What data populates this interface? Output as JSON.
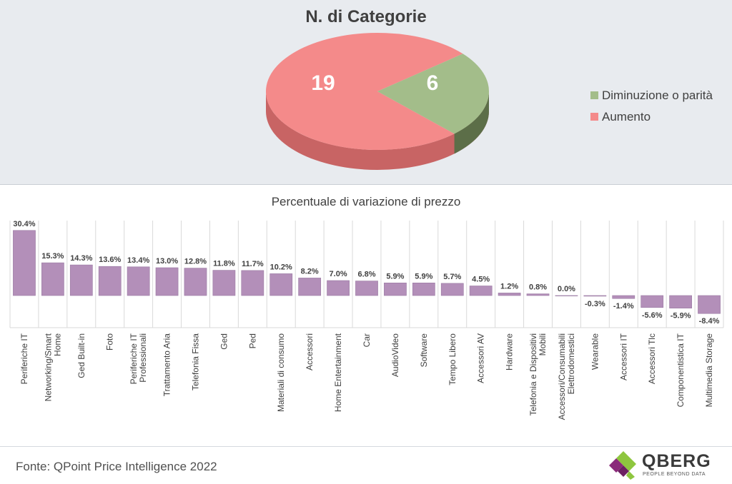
{
  "colors": {
    "increase": "#f48a8a",
    "increase_dark": "#c86464",
    "decrease": "#a3bd8a",
    "decrease_dark": "#5c6e48",
    "bar": "#b38fb9",
    "bar_edge": "#9a7aa2"
  },
  "pie": {
    "title": "N. di Categorie",
    "legend": [
      "Diminuzione o parità",
      "Aumento"
    ]
  },
  "chart_data": [
    {
      "type": "pie",
      "title": "N. di Categorie",
      "slices": [
        {
          "label": "Diminuzione o parità",
          "value": 6,
          "color": "#a3bd8a"
        },
        {
          "label": "Aumento",
          "value": 19,
          "color": "#f48a8a"
        }
      ],
      "legend_position": "right"
    },
    {
      "type": "bar",
      "title": "Percentuale di variazione di prezzo",
      "categories": [
        "Periferiche IT",
        "Networking/Smart Home",
        "Ged Built-in",
        "Foto",
        "Periferiche IT Professionali",
        "Trattamento Aria",
        "Telefonia Fissa",
        "Ged",
        "Ped",
        "Materiali di consumo",
        "Accessori",
        "Home Entertainment",
        "Car",
        "AudioVideo",
        "Software",
        "Tempo Libero",
        "Accessori AV",
        "Hardware",
        "Telefonia e Dispositivi Mobili",
        "Accessori/Consumabili Elettrodomestici",
        "Wearable",
        "Accessori IT",
        "Accessori Tlc",
        "Componentistica IT",
        "Multimedia Storage"
      ],
      "category_lines": [
        [
          "Periferiche IT"
        ],
        [
          "Networking/Smart",
          "Home"
        ],
        [
          "Ged Built-in"
        ],
        [
          "Foto"
        ],
        [
          "Periferiche IT",
          "Professionali"
        ],
        [
          "Trattamento Aria"
        ],
        [
          "Telefonia Fissa"
        ],
        [
          "Ged"
        ],
        [
          "Ped"
        ],
        [
          "Materiali di consumo"
        ],
        [
          "Accessori"
        ],
        [
          "Home Entertainment"
        ],
        [
          "Car"
        ],
        [
          "AudioVideo"
        ],
        [
          "Software"
        ],
        [
          "Tempo Libero"
        ],
        [
          "Accessori AV"
        ],
        [
          "Hardware"
        ],
        [
          "Telefonia e Dispositivi",
          "Mobili"
        ],
        [
          "Accessori/Consumabili",
          "Elettrodomestici"
        ],
        [
          "Wearable"
        ],
        [
          "Accessori IT"
        ],
        [
          "Accessori Tlc"
        ],
        [
          "Componentistica IT"
        ],
        [
          "Multimedia Storage"
        ]
      ],
      "values": [
        30.4,
        15.3,
        14.3,
        13.6,
        13.4,
        13.0,
        12.8,
        11.8,
        11.7,
        10.2,
        8.2,
        7.0,
        6.8,
        5.9,
        5.9,
        5.7,
        4.5,
        1.2,
        0.8,
        0.0,
        -0.3,
        -1.4,
        -5.6,
        -5.9,
        -8.4
      ],
      "value_labels": [
        "30.4%",
        "15.3%",
        "14.3%",
        "13.6%",
        "13.4%",
        "13.0%",
        "12.8%",
        "11.8%",
        "11.7%",
        "10.2%",
        "8.2%",
        "7.0%",
        "6.8%",
        "5.9%",
        "5.9%",
        "5.7%",
        "4.5%",
        "1.2%",
        "0.8%",
        "0.0%",
        "-0.3%",
        "-1.4%",
        "-5.6%",
        "-5.9%",
        "-8.4%"
      ],
      "grid": false
    }
  ],
  "footer": {
    "source": "Fonte: QPoint Price Intelligence 2022",
    "logo_word": "QBERG",
    "logo_tagline": "PEOPLE BEYOND DATA"
  }
}
